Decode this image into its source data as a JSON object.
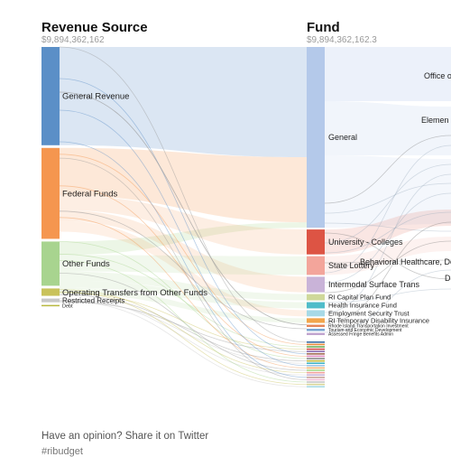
{
  "columns": {
    "left": {
      "title": "Revenue Source",
      "total": "$9,894,362,162"
    },
    "right": {
      "title": "Fund",
      "total": "$9,894,362,162.3"
    }
  },
  "footer": {
    "text": "Have an opinion? Share it on Twitter",
    "hashtag": "#ribudget"
  },
  "chart_data": {
    "type": "sankey",
    "title": "",
    "sources": [
      {
        "name": "General Revenue",
        "color": "#5b8fc7",
        "share": 0.4
      },
      {
        "name": "Federal Funds",
        "color": "#f5964f",
        "share": 0.37
      },
      {
        "name": "Other Funds",
        "color": "#a8d48f",
        "share": 0.18
      },
      {
        "name": "Operating Transfers from Other Funds",
        "color": "#c9c25a",
        "share": 0.03
      },
      {
        "name": "Restricted Receipts",
        "color": "#c8c8c8",
        "share": 0.015
      },
      {
        "name": "Debt",
        "color": "#b8b840",
        "share": 0.005
      }
    ],
    "funds": [
      {
        "name": "General",
        "color": "#b4c9ea",
        "share": 0.58
      },
      {
        "name": "University - Colleges",
        "color": "#dd5444",
        "share": 0.08
      },
      {
        "name": "State Lottery",
        "color": "#f3a59b",
        "share": 0.06
      },
      {
        "name": "Intermodal Surface Trans",
        "color": "#c9b3d8",
        "share": 0.05
      },
      {
        "name": "RI Capital Plan Fund",
        "color": "#cfd89a",
        "share": 0.02
      },
      {
        "name": "Health Insurance Fund",
        "color": "#4fbcc9",
        "share": 0.02
      },
      {
        "name": "Employment Security Trust",
        "color": "#a7d9e6",
        "share": 0.02
      },
      {
        "name": "RI Temporary Disability Insurance",
        "color": "#f2a54b",
        "share": 0.015
      },
      {
        "name": "Rhode Island Transportation Investment",
        "color": "#e6875a",
        "share": 0.006
      },
      {
        "name": "Tourism and Economic Development",
        "color": "#7aa5d0",
        "share": 0.006
      },
      {
        "name": "Assessed Fringe Benefits Admin",
        "color": "#c1a5cf",
        "share": 0.006
      }
    ],
    "fund_minor_colors": [
      "#3a6ea5",
      "#e88a3a",
      "#6fb159",
      "#d4494b",
      "#8c6bb1",
      "#a06b52",
      "#e38fc3",
      "#8c8c8c",
      "#c2b83a",
      "#3fb4c6",
      "#9ec5e7",
      "#f5b97a",
      "#a9db8f",
      "#f2a09a",
      "#c8b3d8",
      "#c9a69a",
      "#f3bfd8",
      "#c7c7c7",
      "#d8d596",
      "#a9dbe6"
    ],
    "destinations_partial": [
      {
        "name": "Office o"
      },
      {
        "name": "Elemen"
      },
      {
        "name": "Behavioral Healthcare, Deve"
      },
      {
        "name": "D"
      }
    ]
  }
}
